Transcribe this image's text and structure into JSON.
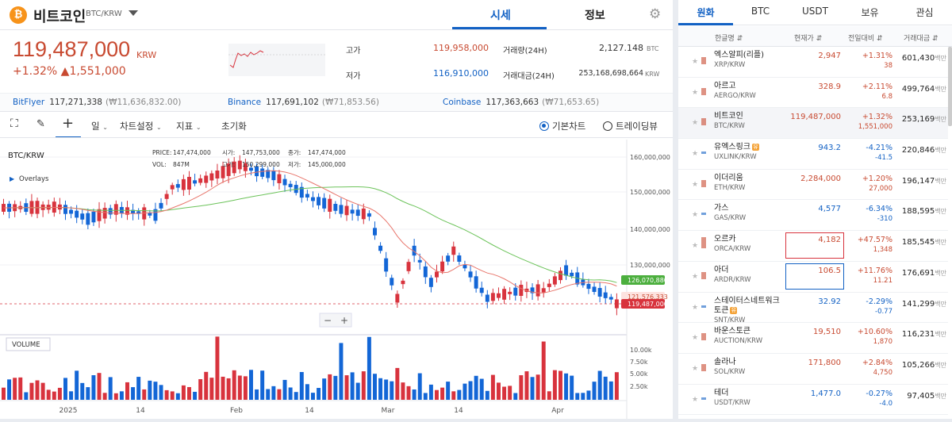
{
  "header": {
    "coin_icon": "₿",
    "coin_name": "비트코인",
    "pair": "BTC/KRW",
    "tab_sise": "시세",
    "tab_info": "정보"
  },
  "price": {
    "value": "119,487,000",
    "unit": "KRW",
    "change_pct": "+1.32%",
    "change_amt": "▲1,551,000",
    "high_label": "고가",
    "high_value": "119,958,000",
    "low_label": "저가",
    "low_value": "116,910,000",
    "vol24_label": "거래량(24H)",
    "vol24_value": "2,127.148",
    "vol24_unit": "BTC",
    "amt24_label": "거래대금(24H)",
    "amt24_value": "253,168,698,664",
    "amt24_unit": "KRW"
  },
  "exchanges": [
    {
      "name": "BitFlyer",
      "price": "117,271,338",
      "krw": "(₩11,636,832.00)"
    },
    {
      "name": "Binance",
      "price": "117,691,102",
      "krw": "(₩71,853.56)"
    },
    {
      "name": "Coinbase",
      "price": "117,363,663",
      "krw": "(₩71,653.65)"
    }
  ],
  "toolbar": {
    "period": "일",
    "chart_settings": "차트설정",
    "indicators": "지표",
    "reset": "초기화",
    "basic_chart": "기본차트",
    "tradingview": "트레이딩뷰"
  },
  "chart_labels": {
    "pair": "BTC/KRW",
    "overlays": "Overlays",
    "price_lbl": "PRICE:",
    "price_val": "147,474,000",
    "open_lbl": "시가:",
    "open_val": "147,753,000",
    "close_lbl": "종가:",
    "close_val": "147,474,000",
    "vol_lbl": "VOL:",
    "vol_val": "847M",
    "high_lbl": "고가:",
    "high_val": "150,299,000",
    "low_lbl": "저가:",
    "low_val": "145,000,000",
    "volume": "VOLUME",
    "badge_ma_long": "126,070,880",
    "badge_ma_short": "121,576,333",
    "badge_price": "119,487,000",
    "zoom_minus": "−",
    "zoom_plus": "+"
  },
  "chart_data": {
    "type": "candlestick",
    "price_axis_ticks": [
      "160,000,000",
      "150,000,000",
      "140,000,000",
      "130,000,000"
    ],
    "volume_axis_ticks": [
      "10.00k",
      "7.50k",
      "5.00k",
      "2.50k"
    ],
    "x_axis_ticks": [
      "2025",
      "14",
      "Feb",
      "14",
      "Mar",
      "14",
      "Apr",
      "14"
    ],
    "colors": {
      "up": "#d8333d",
      "down": "#1366d6",
      "ma_short": "#e8766c",
      "ma_long": "#6cc35a"
    }
  },
  "market_tabs": [
    "원화",
    "BTC",
    "USDT",
    "보유",
    "관심"
  ],
  "list_header": {
    "name": "한글명 ⇵",
    "price": "현재가 ⇵",
    "change": "전일대비 ⇵",
    "volume": "거래대금 ⇵"
  },
  "markets": [
    {
      "name": "엑스알피(리플)",
      "ticker": "XRP/KRW",
      "price": "2,947",
      "pct": "+1.31%",
      "amt": "38",
      "vol": "601,430",
      "unit": "백만",
      "dir": "up"
    },
    {
      "name": "아르고",
      "ticker": "AERGO/KRW",
      "price": "328.9",
      "pct": "+2.11%",
      "amt": "6.8",
      "vol": "499,764",
      "unit": "백만",
      "dir": "up"
    },
    {
      "name": "비트코인",
      "ticker": "BTC/KRW",
      "price": "119,487,000",
      "pct": "+1.32%",
      "amt": "1,551,000",
      "vol": "253,169",
      "unit": "백만",
      "dir": "up"
    },
    {
      "name": "유엑스링크",
      "ticker": "UXLINK/KRW",
      "price": "943.2",
      "pct": "-4.21%",
      "amt": "-41.5",
      "vol": "220,846",
      "unit": "백만",
      "dir": "down",
      "warn": "유"
    },
    {
      "name": "이더리움",
      "ticker": "ETH/KRW",
      "price": "2,284,000",
      "pct": "+1.20%",
      "amt": "27,000",
      "vol": "196,147",
      "unit": "백만",
      "dir": "up"
    },
    {
      "name": "가스",
      "ticker": "GAS/KRW",
      "price": "4,577",
      "pct": "-6.34%",
      "amt": "-310",
      "vol": "188,595",
      "unit": "백만",
      "dir": "down"
    },
    {
      "name": "오르카",
      "ticker": "ORCA/KRW",
      "price": "4,182",
      "pct": "+47.57%",
      "amt": "1,348",
      "vol": "185,545",
      "unit": "백만",
      "dir": "up"
    },
    {
      "name": "아더",
      "ticker": "ARDR/KRW",
      "price": "106.5",
      "pct": "+11.76%",
      "amt": "11.21",
      "vol": "176,691",
      "unit": "백만",
      "dir": "up"
    },
    {
      "name": "스테이터스네트워크토큰",
      "ticker": "SNT/KRW",
      "price": "32.92",
      "pct": "-2.29%",
      "amt": "-0.77",
      "vol": "141,299",
      "unit": "백만",
      "dir": "down",
      "warn": "유"
    },
    {
      "name": "바운스토큰",
      "ticker": "AUCTION/KRW",
      "price": "19,510",
      "pct": "+10.60%",
      "amt": "1,870",
      "vol": "116,231",
      "unit": "백만",
      "dir": "up"
    },
    {
      "name": "솔라나",
      "ticker": "SOL/KRW",
      "price": "171,800",
      "pct": "+2.84%",
      "amt": "4,750",
      "vol": "105,266",
      "unit": "백만",
      "dir": "up"
    },
    {
      "name": "테더",
      "ticker": "USDT/KRW",
      "price": "1,477.0",
      "pct": "-0.27%",
      "amt": "-4.0",
      "vol": "97,405",
      "unit": "백만",
      "dir": "down"
    }
  ]
}
